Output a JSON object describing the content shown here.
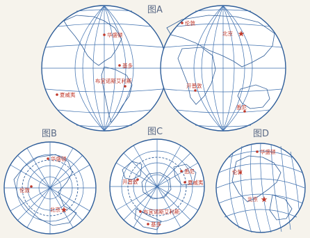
{
  "figures": {
    "A": {
      "label": "图A"
    },
    "B": {
      "label": "图B"
    },
    "C": {
      "label": "图C"
    },
    "D": {
      "label": "图D"
    }
  },
  "cities": {
    "washington": "华盛顿",
    "lima": "基多",
    "buenos_aires": "布宜诺斯艾利斯",
    "honolulu": "夏威夷",
    "london": "伦敦",
    "beijing": "北京",
    "cape_town": "开普敦",
    "sydney": "悉尼"
  },
  "colors": {
    "grid": "#3d6fae",
    "city": "#c0392b",
    "label": "#5a6a86"
  },
  "icons": {
    "capital": "star-icon",
    "city": "dot-icon"
  }
}
